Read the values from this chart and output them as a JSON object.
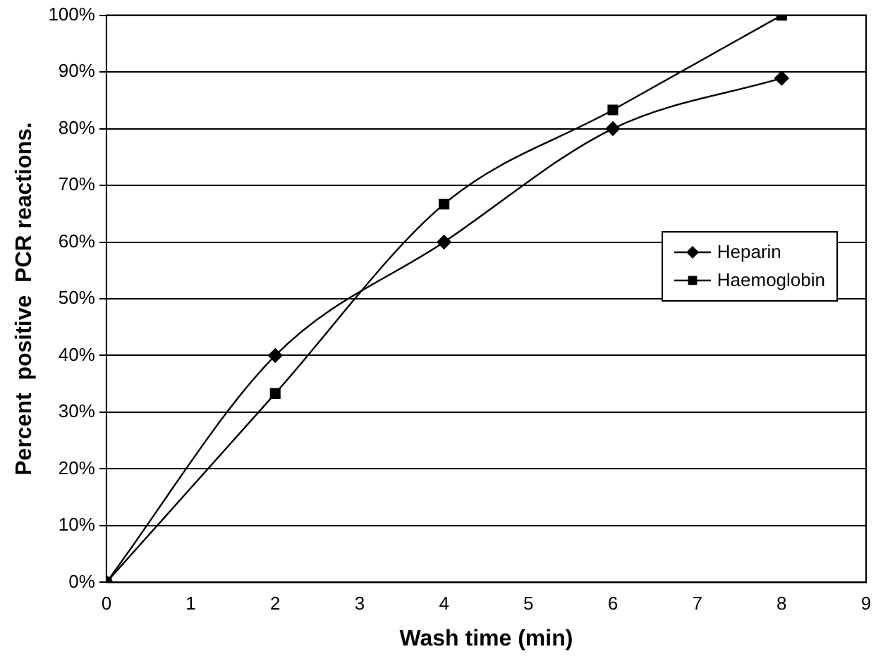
{
  "chart_data": {
    "type": "line",
    "xlabel": "Wash time (min)",
    "ylabel": "Percent  positive  PCR reactions.",
    "xlim": [
      0,
      9
    ],
    "xticks": [
      0,
      1,
      2,
      3,
      4,
      5,
      6,
      7,
      8,
      9
    ],
    "ylim": [
      0,
      100
    ],
    "yticks": [
      {
        "value": 0,
        "label": "0%"
      },
      {
        "value": 10,
        "label": "10%"
      },
      {
        "value": 20,
        "label": "20%"
      },
      {
        "value": 30,
        "label": "30%"
      },
      {
        "value": 40,
        "label": "40%"
      },
      {
        "value": 50,
        "label": "50%"
      },
      {
        "value": 60,
        "label": "60%"
      },
      {
        "value": 70,
        "label": "70%"
      },
      {
        "value": 80,
        "label": "80%"
      },
      {
        "value": 90,
        "label": "90%"
      },
      {
        "value": 100,
        "label": "100%"
      }
    ],
    "grid": "y",
    "legend": "right",
    "line_style": "solid",
    "x": [
      0,
      2,
      4,
      6,
      8
    ],
    "series": [
      {
        "name": "Heparin",
        "color": "#000000",
        "marker": "diamond",
        "values": [
          0,
          40,
          60,
          80,
          88.9
        ]
      },
      {
        "name": "Haemoglobin",
        "color": "#000000",
        "marker": "square",
        "values": [
          0,
          33.3,
          66.7,
          83.3,
          100
        ]
      }
    ]
  }
}
